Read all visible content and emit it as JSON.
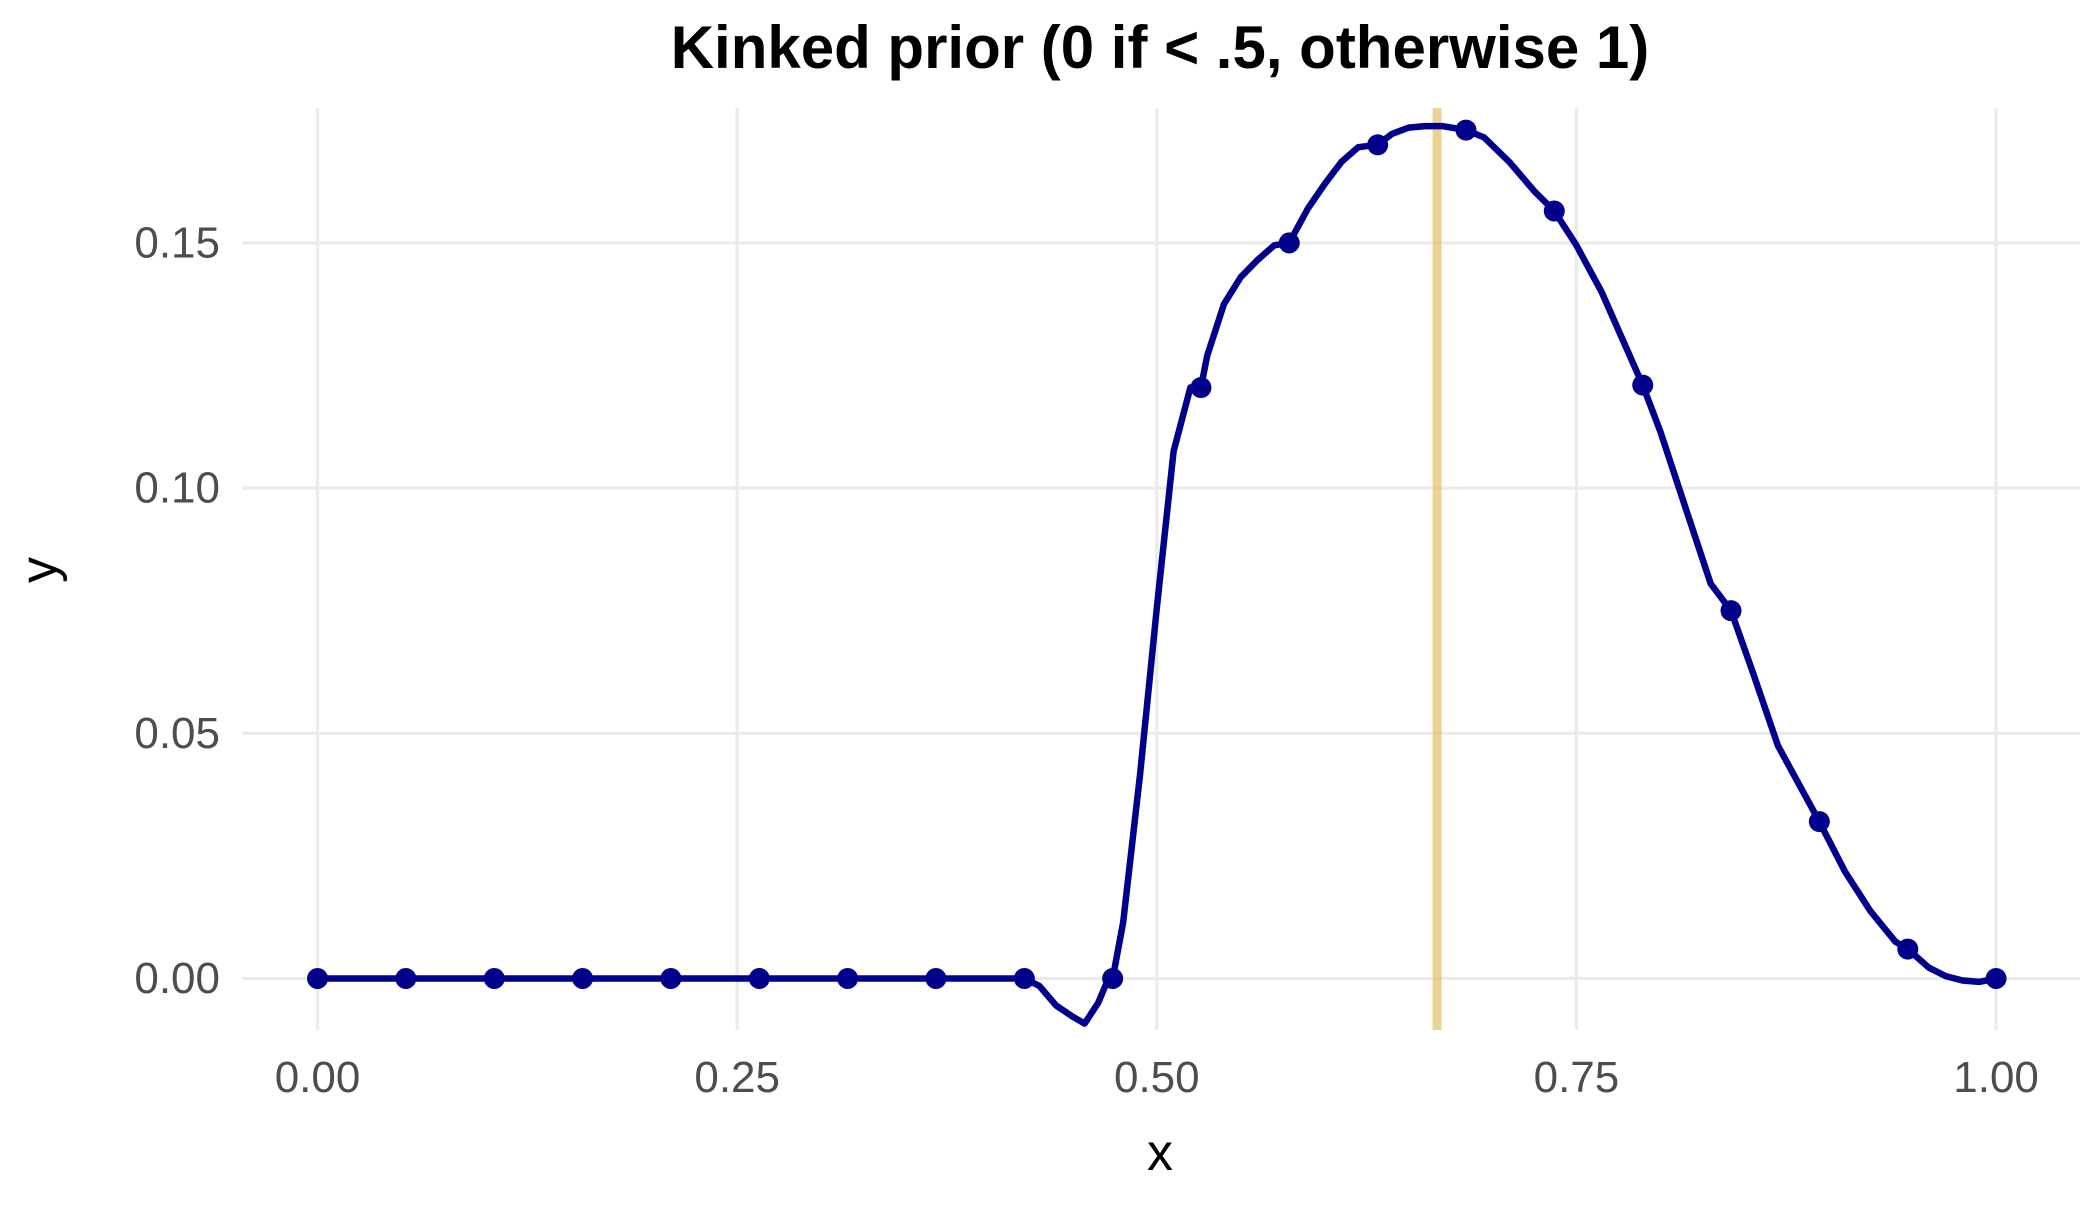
{
  "chart_data": {
    "type": "line",
    "title": "Kinked prior (0 if < .5, otherwise 1)",
    "xlabel": "x",
    "ylabel": "y",
    "xlim": [
      -0.045,
      1.05
    ],
    "ylim": [
      -0.0105,
      0.1775
    ],
    "x_ticks": [
      0,
      0.25,
      0.5,
      0.75,
      1
    ],
    "x_tick_labels": [
      "0.00",
      "0.25",
      "0.50",
      "0.75",
      "1.00"
    ],
    "y_ticks": [
      0,
      0.05,
      0.1,
      0.15
    ],
    "y_tick_labels": [
      "0.00",
      "0.05",
      "0.10",
      "0.15"
    ],
    "grid": true,
    "line_color": "#00008b",
    "reference_line_color": "#e8c170",
    "reference_line_x": 0.667,
    "series": [
      {
        "line": {
          "x": [
            0,
            0.0526,
            0.1053,
            0.1579,
            0.2105,
            0.2632,
            0.3158,
            0.3684,
            0.4211,
            0.43,
            0.44,
            0.45,
            0.457,
            0.465,
            0.47,
            0.4737,
            0.48,
            0.49,
            0.5,
            0.51,
            0.52,
            0.5263,
            0.53,
            0.54,
            0.55,
            0.56,
            0.57,
            0.5789,
            0.59,
            0.6,
            0.61,
            0.62,
            0.6316,
            0.64,
            0.65,
            0.66,
            0.67,
            0.6842,
            0.695,
            0.71,
            0.725,
            0.7368,
            0.75,
            0.765,
            0.7895,
            0.8,
            0.815,
            0.83,
            0.8421,
            0.855,
            0.87,
            0.8947,
            0.91,
            0.925,
            0.94,
            0.9474,
            0.96,
            0.97,
            0.98,
            0.99,
            1
          ],
          "y": [
            0,
            0,
            0,
            0,
            0,
            0,
            0,
            0,
            0,
            -0.0015,
            -0.0055,
            -0.0078,
            -0.0092,
            -0.005,
            -0.001,
            0,
            0.0115,
            0.0415,
            0.0755,
            0.1075,
            0.1205,
            0.1205,
            0.127,
            0.1375,
            0.143,
            0.1465,
            0.1495,
            0.15,
            0.157,
            0.162,
            0.1665,
            0.1695,
            0.17,
            0.1722,
            0.1735,
            0.1738,
            0.1738,
            0.173,
            0.1715,
            0.1665,
            0.1605,
            0.1565,
            0.1495,
            0.14,
            0.121,
            0.1115,
            0.096,
            0.0805,
            0.075,
            0.0625,
            0.0475,
            0.032,
            0.0218,
            0.0138,
            0.0075,
            0.006,
            0.0022,
            0.0005,
            -0.0004,
            -0.0007,
            0
          ]
        },
        "points": {
          "x": [
            0,
            0.0526,
            0.1053,
            0.1579,
            0.2105,
            0.2632,
            0.3158,
            0.3684,
            0.4211,
            0.4737,
            0.5263,
            0.5789,
            0.6316,
            0.6842,
            0.7368,
            0.7895,
            0.8421,
            0.8947,
            0.9474,
            1
          ],
          "y": [
            0,
            0,
            0,
            0,
            0,
            0,
            0,
            0,
            0,
            0,
            0.1205,
            0.15,
            0.17,
            0.173,
            0.1565,
            0.121,
            0.075,
            0.032,
            0.006,
            0
          ]
        }
      }
    ]
  }
}
